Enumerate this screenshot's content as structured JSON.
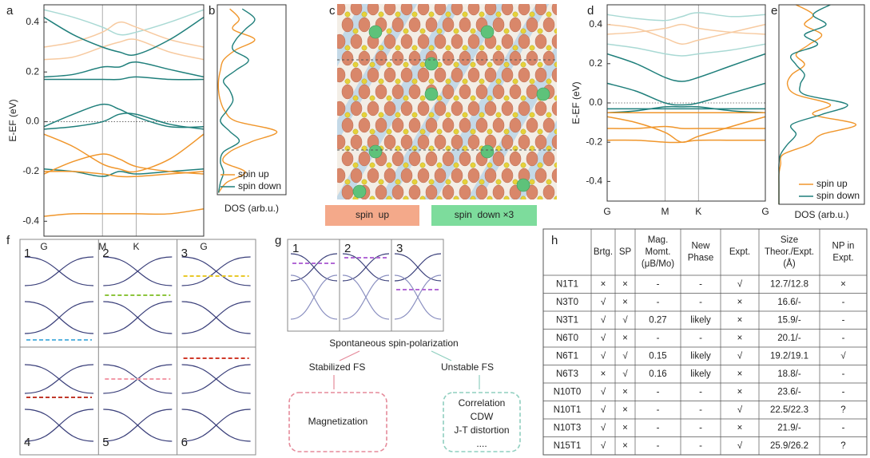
{
  "panel_labels": [
    "a",
    "b",
    "c",
    "d",
    "e",
    "f",
    "g",
    "h"
  ],
  "chart_data": [
    {
      "type": "band",
      "ylabel": "E-EF (eV)",
      "x": [
        0,
        0.5,
        1,
        1.29,
        1.577,
        2.15,
        2.732
      ],
      "xlim": [
        0,
        2.732
      ],
      "xticks": [
        {
          "value": 0,
          "label": "G"
        },
        {
          "value": 1,
          "label": "M"
        },
        {
          "value": 1.577,
          "label": "K"
        },
        {
          "value": 2.732,
          "label": "G"
        }
      ],
      "ylim": [
        -0.46,
        0.47
      ],
      "yticks": [
        -0.4,
        -0.2,
        {
          "value": 0,
          "label": "0.0"
        },
        0.2,
        0.4
      ],
      "zero_line": 0,
      "series": [
        {
          "color": "#a9d9d4",
          "values": [
            0.45,
            0.42,
            0.38,
            0.35,
            0.36,
            0.4,
            0.45
          ]
        },
        {
          "color": "#f7caa0",
          "values": [
            0.3,
            0.32,
            0.36,
            0.4,
            0.38,
            0.33,
            0.3
          ]
        },
        {
          "color": "#f7caa0",
          "values": [
            0.25,
            0.26,
            0.3,
            0.32,
            0.33,
            0.28,
            0.25
          ]
        },
        {
          "color": "#1f7f7b",
          "values": [
            0.42,
            0.35,
            0.3,
            0.28,
            0.27,
            0.33,
            0.42
          ]
        },
        {
          "color": "#1f7f7b",
          "values": [
            0.18,
            0.19,
            0.22,
            0.22,
            0.24,
            0.21,
            0.18
          ]
        },
        {
          "color": "#1f7f7b",
          "values": [
            0.17,
            0.17,
            0.17,
            0.17,
            0.18,
            0.17,
            0.17
          ]
        },
        {
          "color": "#1f7f7b",
          "values": [
            -0.02,
            0.03,
            0.07,
            0.05,
            0.02,
            -0.02,
            -0.02
          ]
        },
        {
          "color": "#1f7f7b",
          "values": [
            -0.03,
            -0.02,
            0.0,
            0.03,
            0.03,
            -0.01,
            -0.03
          ]
        },
        {
          "color": "#1f7f7b",
          "values": [
            -0.19,
            -0.2,
            -0.22,
            -0.2,
            -0.21,
            -0.2,
            -0.19
          ]
        },
        {
          "color": "#f0962b",
          "values": [
            -0.38,
            -0.37,
            -0.37,
            -0.37,
            -0.37,
            -0.37,
            -0.35
          ]
        },
        {
          "color": "#f0962b",
          "values": [
            -0.21,
            -0.16,
            -0.13,
            -0.15,
            -0.18,
            -0.2,
            -0.21
          ]
        },
        {
          "color": "#f0962b",
          "values": [
            -0.2,
            -0.2,
            -0.21,
            -0.22,
            -0.22,
            -0.21,
            -0.2
          ]
        },
        {
          "color": "#f0962b",
          "values": [
            -0.05,
            -0.1,
            -0.17,
            -0.19,
            -0.2,
            -0.15,
            -0.05
          ]
        }
      ]
    },
    {
      "type": "dos",
      "xlabel": "DOS (arb.u.)",
      "legend": "lower right",
      "x": [
        -0.45,
        -0.4,
        -0.35,
        -0.3,
        -0.25,
        -0.2,
        -0.15,
        -0.1,
        -0.05,
        0,
        0.05,
        0.1,
        0.15,
        0.2,
        0.25,
        0.3,
        0.35,
        0.4,
        0.45
      ],
      "xlim": [
        -0.46,
        0.47
      ],
      "ylim": [
        0,
        1.1
      ],
      "series": [
        {
          "name": "spin up",
          "color": "#f0962b",
          "values": [
            0.02,
            0.15,
            0.45,
            0.1,
            0.2,
            0.55,
            0.95,
            0.3,
            0.12,
            0.05,
            0.02,
            0.02,
            0.05,
            0.1,
            0.3,
            0.6,
            0.25,
            0.35,
            0.2
          ]
        },
        {
          "name": "spin down",
          "color": "#1f7f7b",
          "values": [
            0.02,
            0.05,
            0.1,
            0.05,
            0.1,
            0.35,
            0.2,
            0.05,
            0.15,
            0.25,
            0.2,
            0.1,
            0.3,
            0.5,
            0.25,
            0.3,
            0.45,
            0.6,
            0.4
          ]
        }
      ]
    },
    {
      "type": "band",
      "ylabel": "E-EF (eV)",
      "x": [
        0,
        0.5,
        1,
        1.29,
        1.577,
        2.15,
        2.732
      ],
      "xlim": [
        0,
        2.732
      ],
      "xticks": [
        {
          "value": 0,
          "label": "G"
        },
        {
          "value": 1,
          "label": "M"
        },
        {
          "value": 1.577,
          "label": "K"
        },
        {
          "value": 2.732,
          "label": "G"
        }
      ],
      "ylim": [
        -0.5,
        0.5
      ],
      "yticks": [
        -0.4,
        -0.2,
        {
          "value": 0,
          "label": "0.0"
        },
        0.2,
        0.4
      ],
      "zero_line": 0,
      "series": [
        {
          "color": "#a9d9d4",
          "values": [
            0.45,
            0.43,
            0.42,
            0.44,
            0.46,
            0.44,
            0.45
          ]
        },
        {
          "color": "#a9d9d4",
          "values": [
            0.3,
            0.28,
            0.25,
            0.24,
            0.25,
            0.27,
            0.3
          ]
        },
        {
          "color": "#f7caa0",
          "values": [
            0.4,
            0.38,
            0.33,
            0.3,
            0.32,
            0.36,
            0.4
          ]
        },
        {
          "color": "#f7caa0",
          "values": [
            0.35,
            0.36,
            0.38,
            0.4,
            0.38,
            0.36,
            0.35
          ]
        },
        {
          "color": "#1f7f7b",
          "values": [
            0.25,
            0.2,
            0.13,
            0.11,
            0.13,
            0.19,
            0.25
          ]
        },
        {
          "color": "#1f7f7b",
          "values": [
            0.1,
            0.06,
            0.0,
            -0.01,
            0.0,
            0.05,
            0.1
          ]
        },
        {
          "color": "#1f7f7b",
          "values": [
            -0.05,
            -0.04,
            -0.02,
            -0.02,
            -0.02,
            -0.04,
            -0.05
          ]
        },
        {
          "color": "#1f7f7b",
          "values": [
            -0.03,
            -0.03,
            -0.03,
            -0.03,
            -0.03,
            -0.03,
            -0.03
          ]
        },
        {
          "color": "#f0962b",
          "values": [
            -0.05,
            -0.05,
            -0.05,
            -0.05,
            -0.05,
            -0.05,
            -0.05
          ]
        },
        {
          "color": "#f0962b",
          "values": [
            -0.13,
            -0.13,
            -0.12,
            -0.13,
            -0.13,
            -0.13,
            -0.13
          ]
        },
        {
          "color": "#f0962b",
          "values": [
            -0.19,
            -0.19,
            -0.2,
            -0.2,
            -0.19,
            -0.19,
            -0.19
          ]
        },
        {
          "color": "#f0962b",
          "values": [
            -0.07,
            -0.1,
            -0.15,
            -0.2,
            -0.17,
            -0.12,
            -0.07
          ]
        }
      ]
    },
    {
      "type": "dos",
      "xlabel": "DOS (arb.u.)",
      "legend": "lower right",
      "x": [
        -0.5,
        -0.45,
        -0.4,
        -0.35,
        -0.3,
        -0.25,
        -0.2,
        -0.15,
        -0.1,
        -0.05,
        0,
        0.05,
        0.1,
        0.15,
        0.2,
        0.25,
        0.3,
        0.35,
        0.4,
        0.45,
        0.5
      ],
      "xlim": [
        -0.5,
        0.5
      ],
      "ylim": [
        0,
        1.0
      ],
      "series": [
        {
          "name": "spin up",
          "color": "#f0962b",
          "values": [
            0,
            0,
            0,
            0,
            0.02,
            0.05,
            0.35,
            0.5,
            0.9,
            0.4,
            0.6,
            0.2,
            0.1,
            0.15,
            0.3,
            0.2,
            0.35,
            0.5,
            0.3,
            0.4,
            0.2
          ]
        },
        {
          "name": "spin down",
          "color": "#1f7f7b",
          "values": [
            0,
            0,
            0,
            0,
            0,
            0.02,
            0.1,
            0.2,
            0.15,
            0.5,
            0.8,
            0.3,
            0.25,
            0.3,
            0.2,
            0.15,
            0.45,
            0.3,
            0.55,
            0.4,
            0.6
          ]
        }
      ]
    }
  ],
  "crystal": {
    "legend": [
      "spin  up",
      "spin  down ×3"
    ]
  },
  "schematic_f": {
    "labels": [
      "1",
      "2",
      "3",
      "4",
      "5",
      "6"
    ]
  },
  "schematic_g": {
    "labels": [
      "1",
      "2",
      "3"
    ],
    "root": "Spontaneous spin-polarization",
    "branches": [
      {
        "label": "Stabilized FS",
        "outcome": [
          "Magnetization"
        ]
      },
      {
        "label": "Unstable FS",
        "outcome": [
          "Correlation",
          "CDW",
          "J-T distortion",
          "...."
        ]
      }
    ]
  },
  "table": {
    "columns": [
      [
        "Brtg."
      ],
      [
        "SP"
      ],
      [
        "Mag.",
        "Momt.",
        "(μB/Mo)"
      ],
      [
        "New",
        "Phase"
      ],
      [
        "Expt."
      ],
      [
        "Size",
        "Theor./Expt.",
        "(Å)"
      ],
      [
        "NP in",
        "Expt."
      ]
    ],
    "rows": [
      [
        "N1T1",
        "×",
        "×",
        "-",
        "-",
        "√",
        "12.7/12.8",
        "×"
      ],
      [
        "N3T0",
        "√",
        "×",
        "-",
        "-",
        "×",
        "16.6/-",
        "-"
      ],
      [
        "N3T1",
        "√",
        "√",
        "0.27",
        "likely",
        "×",
        "15.9/-",
        "-"
      ],
      [
        "N6T0",
        "√",
        "×",
        "-",
        "-",
        "×",
        "20.1/-",
        "-"
      ],
      [
        "N6T1",
        "√",
        "√",
        "0.15",
        "likely",
        "√",
        "19.2/19.1",
        "√"
      ],
      [
        "N6T3",
        "×",
        "√",
        "0.16",
        "likely",
        "×",
        "18.8/-",
        "-"
      ],
      [
        "N10T0",
        "√",
        "×",
        "-",
        "-",
        "×",
        "23.6/-",
        "-"
      ],
      [
        "N10T1",
        "√",
        "×",
        "-",
        "-",
        "√",
        "22.5/22.3",
        "?"
      ],
      [
        "N10T3",
        "√",
        "×",
        "-",
        "-",
        "×",
        "21.9/-",
        "-"
      ],
      [
        "N15T1",
        "√",
        "×",
        "-",
        "-",
        "√",
        "25.9/26.2",
        "?"
      ]
    ]
  }
}
